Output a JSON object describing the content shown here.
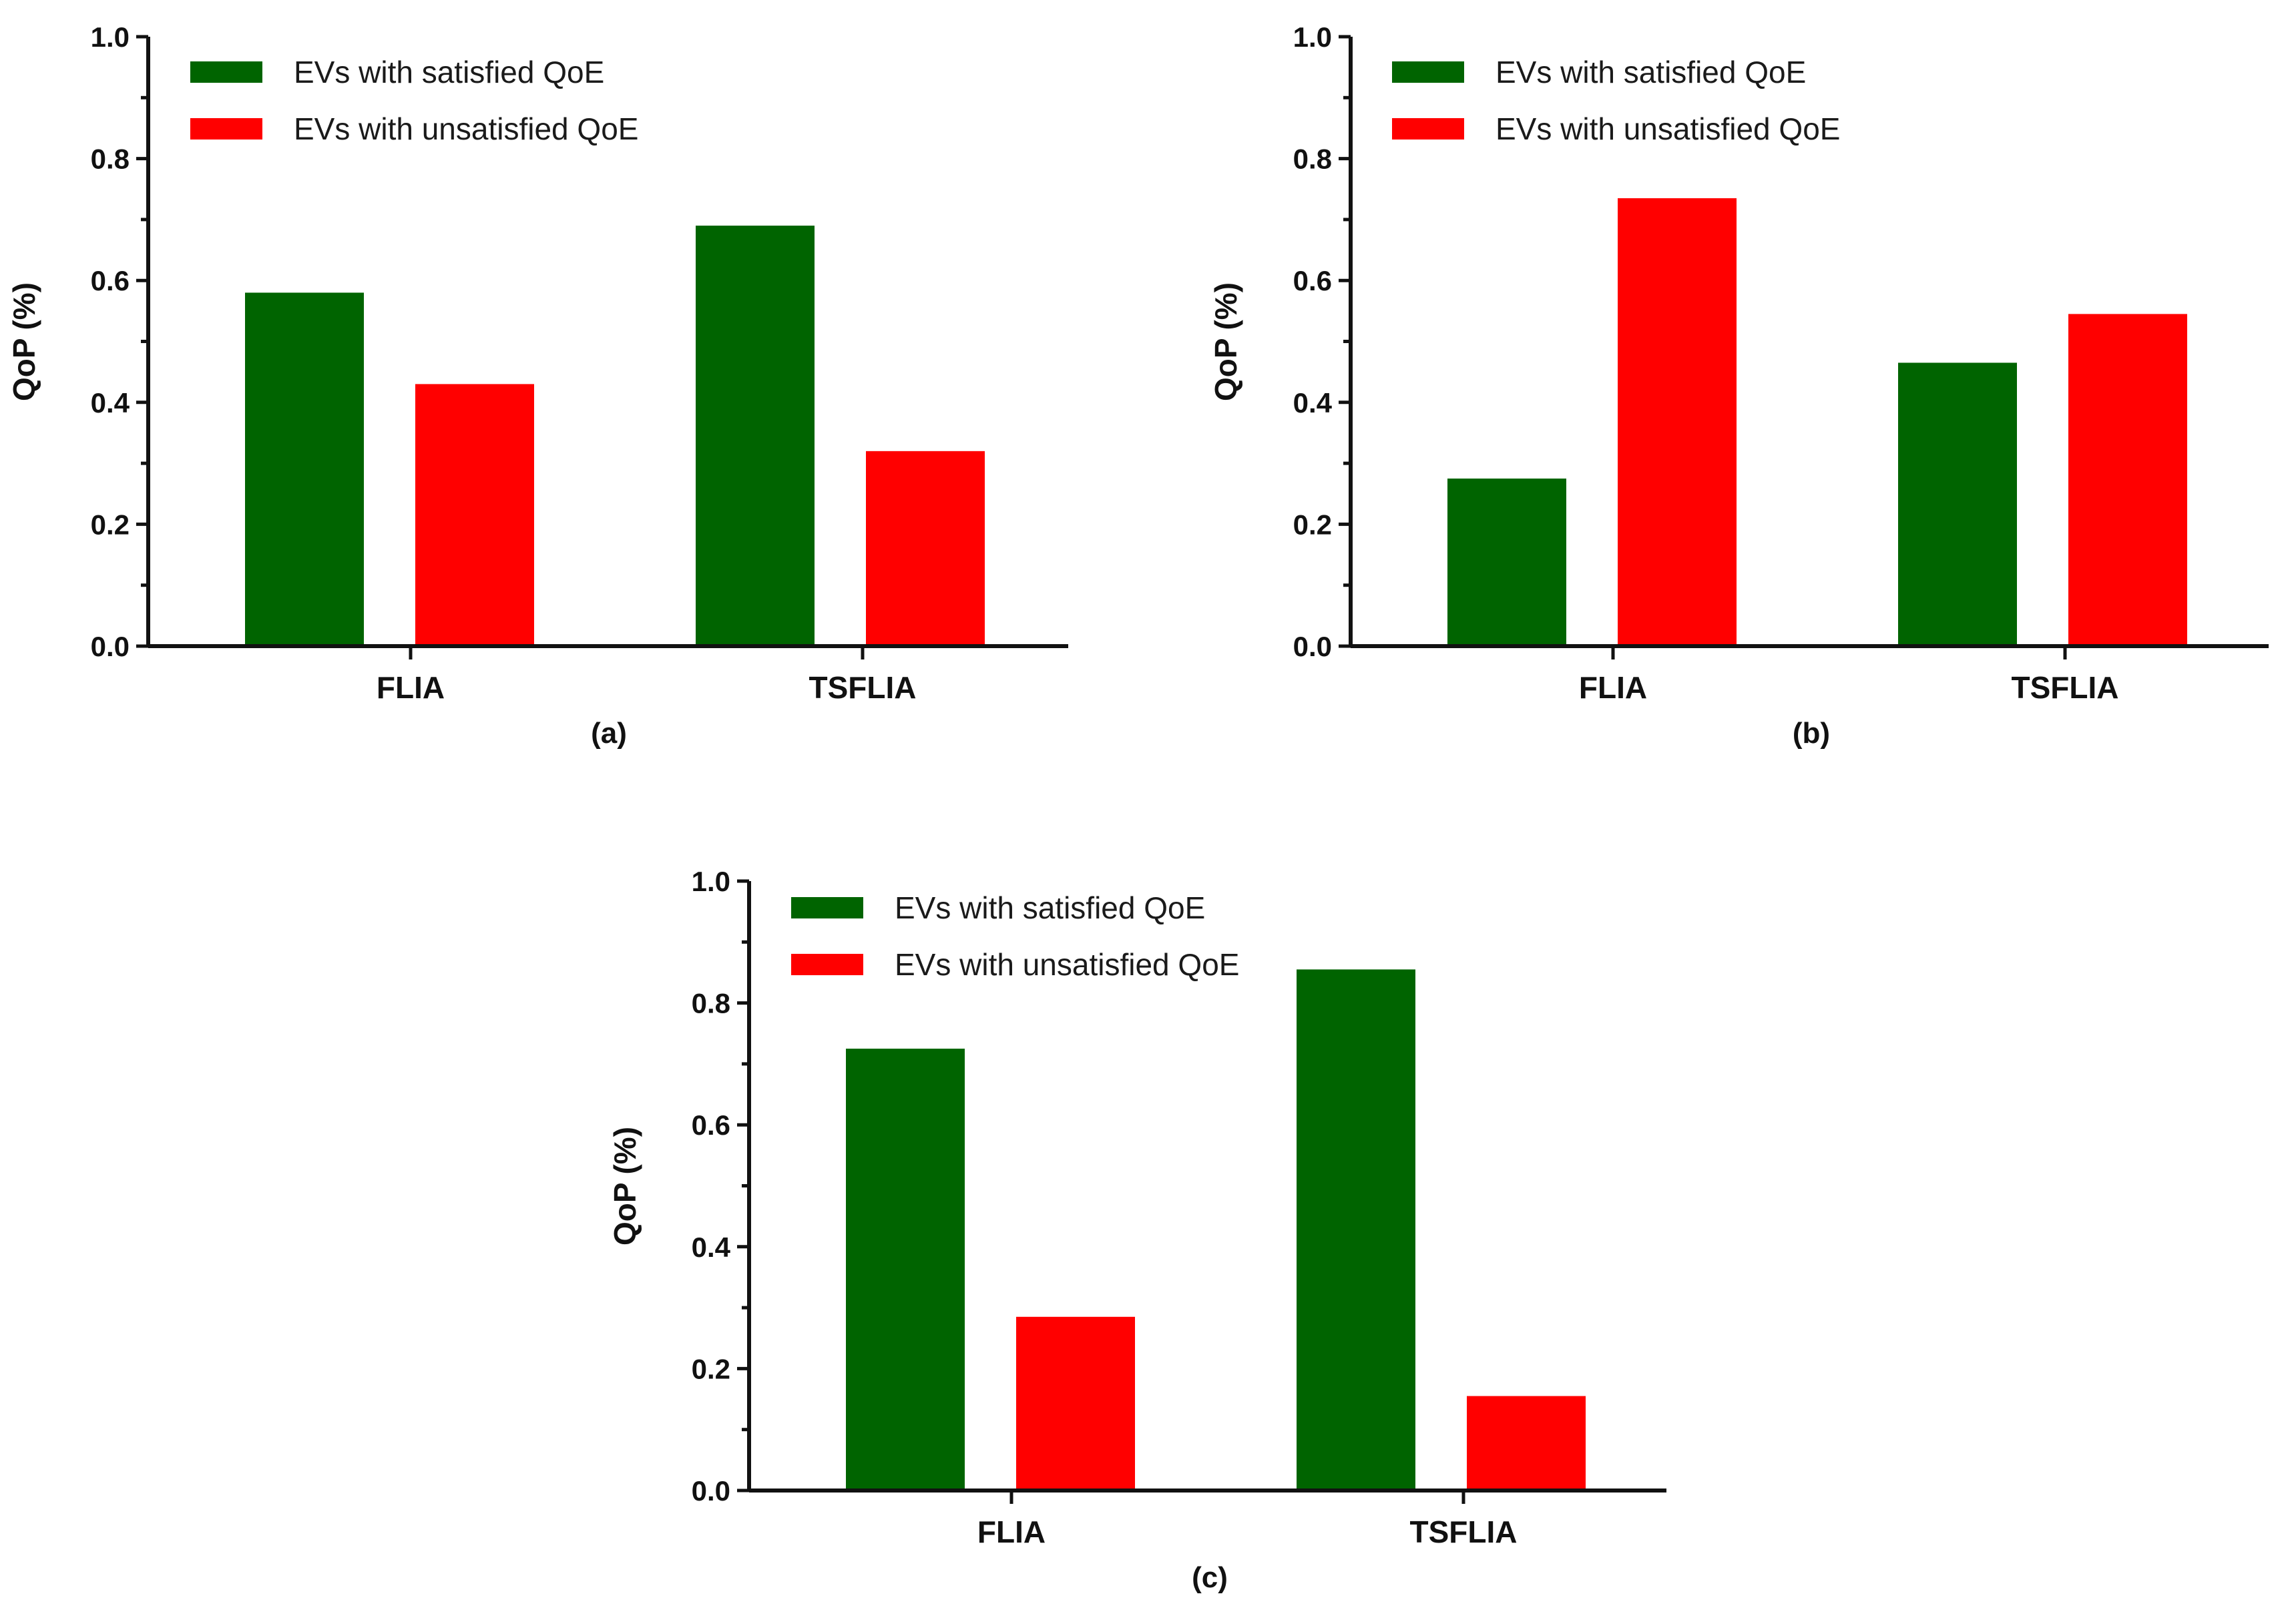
{
  "colors": {
    "satisfied": "#006400",
    "unsatisfied": "#ff0000"
  },
  "chart_data": [
    {
      "type": "bar",
      "panel": "(a)",
      "categories": [
        "FLIA",
        "TSFLIA"
      ],
      "series": [
        {
          "name": "EVs with satisfied QoE",
          "values": [
            0.58,
            0.69
          ]
        },
        {
          "name": "EVs with unsatisfied QoE",
          "values": [
            0.43,
            0.32
          ]
        }
      ],
      "ylabel": "QoP (%)",
      "xlabel": "",
      "ylim": [
        0.0,
        1.0
      ],
      "yticks": [
        "0.0",
        "0.2",
        "0.4",
        "0.6",
        "0.8",
        "1.0"
      ],
      "legend": "top-left"
    },
    {
      "type": "bar",
      "panel": "(b)",
      "categories": [
        "FLIA",
        "TSFLIA"
      ],
      "series": [
        {
          "name": "EVs with satisfied QoE",
          "values": [
            0.275,
            0.465
          ]
        },
        {
          "name": "EVs with unsatisfied QoE",
          "values": [
            0.735,
            0.545
          ]
        }
      ],
      "ylabel": "QoP (%)",
      "xlabel": "",
      "ylim": [
        0.0,
        1.0
      ],
      "yticks": [
        "0.0",
        "0.2",
        "0.4",
        "0.6",
        "0.8",
        "1.0"
      ],
      "legend": "top-left"
    },
    {
      "type": "bar",
      "panel": "(c)",
      "categories": [
        "FLIA",
        "TSFLIA"
      ],
      "series": [
        {
          "name": "EVs with satisfied QoE",
          "values": [
            0.725,
            0.855
          ]
        },
        {
          "name": "EVs with unsatisfied QoE",
          "values": [
            0.285,
            0.155
          ]
        }
      ],
      "ylabel": "QoP (%)",
      "xlabel": "",
      "ylim": [
        0.0,
        1.0
      ],
      "yticks": [
        "0.0",
        "0.2",
        "0.4",
        "0.6",
        "0.8",
        "1.0"
      ],
      "legend": "top-left"
    }
  ]
}
